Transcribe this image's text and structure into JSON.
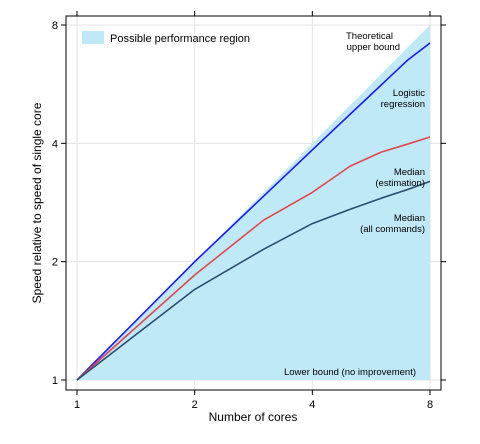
{
  "chart_data": {
    "type": "line",
    "title": "",
    "xlabel": "Number of cores",
    "ylabel": "Speed relative to speed of single core",
    "xscale": "log2",
    "yscale": "log2",
    "xlim": [
      1,
      8
    ],
    "ylim": [
      1,
      8
    ],
    "x_ticks": [
      1,
      2,
      4,
      8
    ],
    "y_ticks": [
      1,
      2,
      4,
      8
    ],
    "grid": true,
    "region": {
      "name": "Possible performance region",
      "color": "#bfe9f7",
      "points": [
        [
          1,
          1
        ],
        [
          8,
          8
        ],
        [
          8,
          1
        ]
      ]
    },
    "series": [
      {
        "name": "Theoretical upper bound",
        "color": "#bfe9f7",
        "x": [
          1,
          8
        ],
        "y": [
          1,
          8
        ]
      },
      {
        "name": "Logistic regression",
        "color": "#1a1aff",
        "x": [
          1,
          2,
          4,
          7,
          8
        ],
        "y": [
          1,
          2.0,
          3.85,
          6.5,
          7.2
        ]
      },
      {
        "name": "Median (estimation)",
        "color": "#e0474c",
        "x": [
          1,
          2,
          3,
          4,
          5,
          6,
          7,
          8
        ],
        "y": [
          1,
          1.85,
          2.55,
          3.0,
          3.5,
          3.8,
          3.98,
          4.15
        ]
      },
      {
        "name": "Median (all commands)",
        "color": "#2b4d6e",
        "x": [
          1,
          2,
          3,
          4,
          5,
          6,
          7,
          8
        ],
        "y": [
          1,
          1.7,
          2.15,
          2.5,
          2.72,
          2.9,
          3.05,
          3.2
        ]
      }
    ],
    "annotations": {
      "upper_bound": [
        "Theoretical",
        "upper bound"
      ],
      "logistic": [
        "Logistic",
        "regression"
      ],
      "median_est": [
        "Median",
        "(estimation)"
      ],
      "median_all": [
        "Median",
        "(all commands)"
      ],
      "lower_bound": "Lower bound (no improvement)"
    },
    "legend": {
      "position": "top-left",
      "label": "Possible performance region"
    }
  }
}
